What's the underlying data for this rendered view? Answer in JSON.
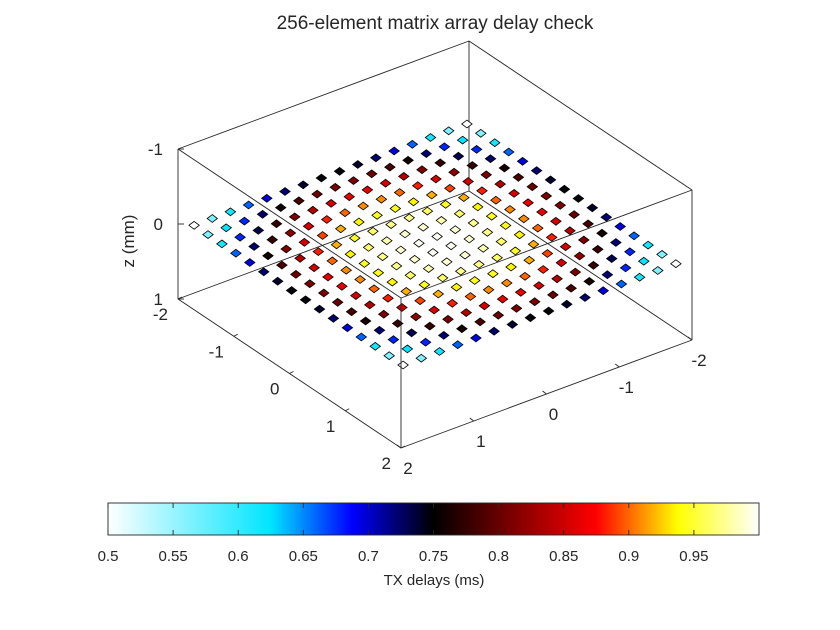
{
  "chart_data": {
    "type": "scatter",
    "projection": "3d",
    "title": "256-element matrix array delay check",
    "xlabel": "",
    "ylabel": "",
    "zlabel": "z (mm)",
    "xlim": [
      -2,
      2
    ],
    "ylim": [
      -2,
      2
    ],
    "zlim": [
      -1,
      1
    ],
    "z_direction": "reverse",
    "x_ticks": [
      -2,
      -1,
      0,
      1,
      2
    ],
    "y_ticks": [
      -2,
      -1,
      0,
      1,
      2
    ],
    "z_ticks": [
      -1,
      0,
      1
    ],
    "x_tick_labels": [
      "-2",
      "-1",
      "0",
      "1",
      "2"
    ],
    "y_tick_labels": [
      "-2",
      "-1",
      "0",
      "1",
      "2"
    ],
    "z_tick_labels": [
      "-1",
      "0",
      "1"
    ],
    "grid": false,
    "box": true,
    "marker": "square",
    "marker_edge_color": "#000000",
    "elements": {
      "rows": 16,
      "cols": 16,
      "x_start": -1.875,
      "x_step": 0.25,
      "y_start": -1.875,
      "y_step": 0.25,
      "z": 0,
      "delay_model": "radial",
      "delay_center_ms": 1.0,
      "delay_edge_ms": 0.5
    },
    "colorbar": {
      "location": "southoutside",
      "label": "TX delays (ms)",
      "range": [
        0.5,
        1.0
      ],
      "ticks": [
        0.5,
        0.55,
        0.6,
        0.65,
        0.7,
        0.75,
        0.8,
        0.85,
        0.9,
        0.95
      ],
      "tick_labels": [
        "0.5",
        "0.55",
        "0.6",
        "0.65",
        "0.7",
        "0.75",
        "0.8",
        "0.85",
        "0.9",
        "0.95"
      ],
      "colormap": [
        [
          0.0,
          "#ffffff"
        ],
        [
          0.25,
          "#00e5ff"
        ],
        [
          0.375,
          "#0000ff"
        ],
        [
          0.5,
          "#000000"
        ],
        [
          0.625,
          "#800000"
        ],
        [
          0.75,
          "#ff0000"
        ],
        [
          0.875,
          "#ffff00"
        ],
        [
          1.0,
          "#ffffff"
        ]
      ]
    }
  }
}
